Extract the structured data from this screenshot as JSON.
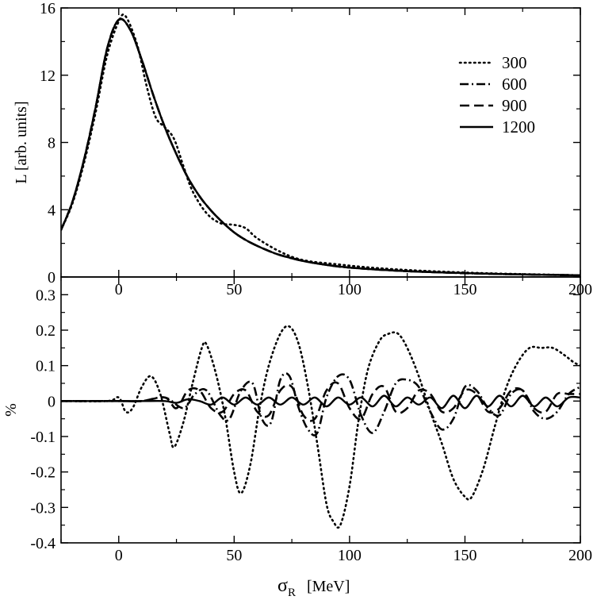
{
  "chart_data": [
    {
      "type": "line",
      "panel": "top",
      "ylabel": "L [arb. units]",
      "xlim": [
        -25,
        200
      ],
      "ylim": [
        0,
        16
      ],
      "xticks": [
        0,
        50,
        100,
        150,
        200
      ],
      "xtick_labels": [
        "0",
        "50",
        "100",
        "150",
        "200"
      ],
      "yticks": [
        0,
        4,
        8,
        12,
        16
      ],
      "ytick_labels": [
        "0",
        "4",
        "8",
        "12",
        "16"
      ],
      "legend": {
        "position": "top-right",
        "entries": [
          "300",
          "600",
          "900",
          "1200"
        ]
      },
      "series": [
        {
          "name": "300",
          "style": "dotted",
          "x": [
            -25,
            -20,
            -15,
            -10,
            -5,
            0,
            3,
            8,
            12,
            16,
            20,
            24,
            28,
            32,
            38,
            44,
            50,
            55,
            60,
            70,
            80,
            95,
            110,
            130,
            160,
            200
          ],
          "y": [
            2.8,
            4.4,
            6.8,
            9.8,
            13.2,
            15.2,
            15.5,
            13.8,
            11.4,
            9.5,
            8.9,
            8.2,
            6.6,
            5.1,
            3.8,
            3.2,
            3.1,
            2.9,
            2.3,
            1.5,
            1.0,
            0.75,
            0.55,
            0.38,
            0.22,
            0.1
          ]
        },
        {
          "name": "600",
          "style": "dash-dot",
          "x": [
            -25,
            -20,
            -15,
            -10,
            -5,
            0,
            5,
            10,
            15,
            20,
            25,
            30,
            35,
            40,
            45,
            50,
            55,
            60,
            65,
            70,
            80,
            90,
            100,
            120,
            140,
            160,
            180,
            200
          ],
          "y": [
            2.8,
            4.5,
            7.0,
            10.1,
            13.6,
            15.3,
            14.7,
            12.9,
            10.8,
            8.9,
            7.3,
            5.9,
            4.8,
            3.95,
            3.25,
            2.65,
            2.2,
            1.85,
            1.55,
            1.3,
            0.95,
            0.72,
            0.56,
            0.38,
            0.27,
            0.19,
            0.14,
            0.1
          ]
        },
        {
          "name": "900",
          "style": "dashed",
          "x": [
            -25,
            -20,
            -15,
            -10,
            -5,
            0,
            5,
            10,
            15,
            20,
            25,
            30,
            35,
            40,
            45,
            50,
            55,
            60,
            65,
            70,
            80,
            90,
            100,
            120,
            140,
            160,
            180,
            200
          ],
          "y": [
            2.8,
            4.5,
            7.0,
            10.1,
            13.6,
            15.3,
            14.7,
            12.9,
            10.8,
            8.9,
            7.3,
            5.9,
            4.8,
            3.95,
            3.25,
            2.65,
            2.2,
            1.85,
            1.55,
            1.3,
            0.95,
            0.72,
            0.56,
            0.38,
            0.27,
            0.19,
            0.14,
            0.1
          ]
        },
        {
          "name": "1200",
          "style": "solid",
          "x": [
            -25,
            -20,
            -15,
            -10,
            -5,
            0,
            5,
            10,
            15,
            20,
            25,
            30,
            35,
            40,
            45,
            50,
            55,
            60,
            65,
            70,
            80,
            90,
            100,
            120,
            140,
            160,
            180,
            200
          ],
          "y": [
            2.8,
            4.5,
            7.0,
            10.1,
            13.6,
            15.3,
            14.7,
            12.9,
            10.8,
            8.9,
            7.3,
            5.9,
            4.8,
            3.95,
            3.25,
            2.65,
            2.2,
            1.85,
            1.55,
            1.3,
            0.95,
            0.72,
            0.56,
            0.38,
            0.27,
            0.19,
            0.14,
            0.1
          ]
        }
      ]
    },
    {
      "type": "line",
      "panel": "bottom",
      "xlabel": "σ",
      "xlabel_sub": "R",
      "xlabel_unit": "[MeV]",
      "ylabel": "%",
      "xlim": [
        -25,
        200
      ],
      "ylim": [
        -0.4,
        0.35
      ],
      "xticks": [
        0,
        50,
        100,
        150,
        200
      ],
      "xtick_labels": [
        "0",
        "50",
        "100",
        "150",
        "200"
      ],
      "yticks": [
        -0.4,
        -0.3,
        -0.2,
        -0.1,
        0,
        0.1,
        0.2,
        0.3
      ],
      "ytick_labels": [
        "-0.4",
        "-0.3",
        "-0.2",
        "-0.1",
        "0",
        "0.1",
        "0.2",
        "0.3"
      ],
      "series": [
        {
          "name": "300",
          "style": "dotted",
          "x": [
            -25,
            -5,
            0,
            3,
            6,
            10,
            14,
            18,
            22,
            24,
            28,
            32,
            36,
            38,
            42,
            46,
            50,
            53,
            57,
            61,
            65,
            70,
            74,
            78,
            82,
            86,
            90,
            93,
            96,
            100,
            104,
            108,
            113,
            117,
            121,
            125,
            130,
            135,
            140,
            145,
            150,
            153,
            158,
            163,
            168,
            173,
            178,
            183,
            188,
            193,
            197,
            200
          ],
          "y": [
            0,
            0,
            0.01,
            -0.03,
            -0.02,
            0.04,
            0.07,
            0.02,
            -0.09,
            -0.13,
            -0.06,
            0.05,
            0.15,
            0.16,
            0.08,
            -0.04,
            -0.2,
            -0.26,
            -0.18,
            -0.02,
            0.1,
            0.19,
            0.21,
            0.16,
            0.04,
            -0.12,
            -0.29,
            -0.34,
            -0.35,
            -0.24,
            -0.05,
            0.09,
            0.17,
            0.19,
            0.19,
            0.15,
            0.07,
            -0.03,
            -0.12,
            -0.22,
            -0.27,
            -0.27,
            -0.19,
            -0.07,
            0.04,
            0.11,
            0.15,
            0.15,
            0.15,
            0.13,
            0.11,
            0.1
          ]
        },
        {
          "name": "600",
          "style": "dash-dot",
          "x": [
            -25,
            0,
            10,
            20,
            28,
            33,
            38,
            44,
            48,
            53,
            58,
            62,
            66,
            70,
            74,
            78,
            82,
            86,
            90,
            95,
            100,
            105,
            110,
            115,
            120,
            125,
            130,
            135,
            140,
            145,
            150,
            155,
            160,
            165,
            170,
            175,
            180,
            185,
            190,
            195,
            200
          ],
          "y": [
            0,
            0,
            0,
            0.01,
            -0.02,
            0.02,
            0.03,
            -0.04,
            -0.05,
            0.03,
            0.05,
            -0.05,
            -0.06,
            0.06,
            0.07,
            -0.02,
            -0.08,
            -0.09,
            0.01,
            0.07,
            0.06,
            -0.04,
            -0.09,
            -0.03,
            0.05,
            0.06,
            0.04,
            -0.03,
            -0.08,
            -0.05,
            0.04,
            0.03,
            -0.02,
            -0.04,
            0.02,
            0.03,
            -0.03,
            -0.05,
            -0.03,
            0.02,
            0.04
          ]
        },
        {
          "name": "900",
          "style": "dashed",
          "x": [
            -25,
            0,
            10,
            20,
            25,
            30,
            35,
            40,
            45,
            50,
            55,
            60,
            65,
            70,
            75,
            80,
            85,
            90,
            95,
            100,
            105,
            110,
            115,
            120,
            125,
            130,
            135,
            140,
            145,
            150,
            155,
            160,
            165,
            170,
            175,
            180,
            185,
            190,
            195,
            200
          ],
          "y": [
            0,
            0,
            0,
            0.01,
            -0.02,
            0.03,
            0.03,
            -0.02,
            -0.03,
            0.02,
            0.03,
            -0.03,
            -0.04,
            0.03,
            0.04,
            -0.04,
            -0.05,
            0.03,
            0.05,
            -0.02,
            -0.05,
            0.02,
            0.04,
            -0.03,
            -0.02,
            0.03,
            0.02,
            -0.03,
            -0.02,
            0.03,
            0.02,
            -0.03,
            -0.02,
            0.03,
            0.03,
            -0.02,
            -0.03,
            0.02,
            0.02,
            0.02
          ]
        },
        {
          "name": "1200",
          "style": "solid",
          "x": [
            -25,
            0,
            10,
            20,
            25,
            30,
            35,
            40,
            45,
            50,
            55,
            60,
            65,
            70,
            75,
            80,
            85,
            90,
            95,
            100,
            105,
            110,
            115,
            120,
            125,
            130,
            135,
            140,
            145,
            150,
            155,
            160,
            165,
            170,
            175,
            180,
            185,
            190,
            195,
            200
          ],
          "y": [
            0,
            0,
            0,
            0,
            -0.005,
            0.005,
            0,
            -0.01,
            0.01,
            -0.01,
            0.01,
            -0.01,
            0.01,
            -0.01,
            0.01,
            -0.01,
            0.01,
            -0.015,
            0.01,
            -0.01,
            0.01,
            -0.015,
            0.015,
            -0.015,
            0.01,
            -0.01,
            0.01,
            -0.02,
            0.015,
            -0.02,
            0.015,
            -0.015,
            0.015,
            -0.015,
            0.015,
            -0.015,
            0.01,
            -0.015,
            0.01,
            0.01
          ]
        }
      ]
    }
  ]
}
